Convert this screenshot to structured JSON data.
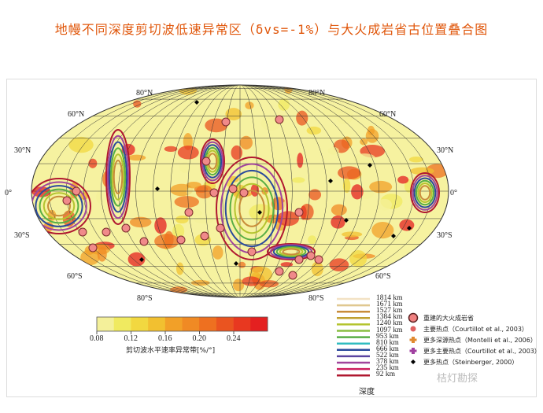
{
  "title": "地幔不同深度剪切波低速异常区（δvs=-1%）与大火成岩省古位置叠合图",
  "map": {
    "lat_labels": [
      "80°N",
      "80°N",
      "60°N",
      "60°N",
      "30°N",
      "30°N",
      "0°",
      "0°",
      "30°S",
      "30°S",
      "60°S",
      "60°S",
      "80°S",
      "80°S"
    ],
    "background_color": "#f6f2a0"
  },
  "colorbar": {
    "ticks": [
      "0.08",
      "0.12",
      "0.16",
      "0.20",
      "0.24"
    ],
    "label": "剪切波水平速率异常带[%/°]",
    "colors": [
      "#f4f09a",
      "#f0ea60",
      "#f2d840",
      "#f2c030",
      "#f2a028",
      "#f08a24",
      "#ee7020",
      "#ea5420",
      "#e83820",
      "#e42020"
    ]
  },
  "depth_legend": {
    "title": "深度",
    "items": [
      {
        "label": "1814 km",
        "color": "#f3e2c4"
      },
      {
        "label": "1671 km",
        "color": "#e0c890"
      },
      {
        "label": "1527 km",
        "color": "#c88c3a"
      },
      {
        "label": "1384 km",
        "color": "#c0a030"
      },
      {
        "label": "1240 km",
        "color": "#b4c430"
      },
      {
        "label": "1097 km",
        "color": "#88be40"
      },
      {
        "label": "953 km",
        "color": "#58ae44"
      },
      {
        "label": "810 km",
        "color": "#30bcc0"
      },
      {
        "label": "666 km",
        "color": "#2a4a9c"
      },
      {
        "label": "522 km",
        "color": "#5a44a0"
      },
      {
        "label": "378 km",
        "color": "#a0449c"
      },
      {
        "label": "235 km",
        "color": "#cc2060"
      },
      {
        "label": "92 km",
        "color": "#b01830"
      }
    ]
  },
  "symbol_legend": [
    {
      "label": "重建的大火成岩省",
      "icon": "large-circle",
      "color": "#f08080"
    },
    {
      "label": "主要热点（Courtillot et al., 2003）",
      "icon": "small-circle",
      "color": "#e06060"
    },
    {
      "label": "更多深源热点（Montelli et al., 2006）",
      "icon": "orange-cross",
      "color": "#e08a30"
    },
    {
      "label": "更多主要热点（Courtillot et al., 2003）",
      "icon": "purple-cross",
      "color": "#a040a0"
    },
    {
      "label": "更多热点（Steinberger, 2000）",
      "icon": "black-diamond",
      "color": "#000000"
    }
  ],
  "watermark": "桔灯勘探"
}
